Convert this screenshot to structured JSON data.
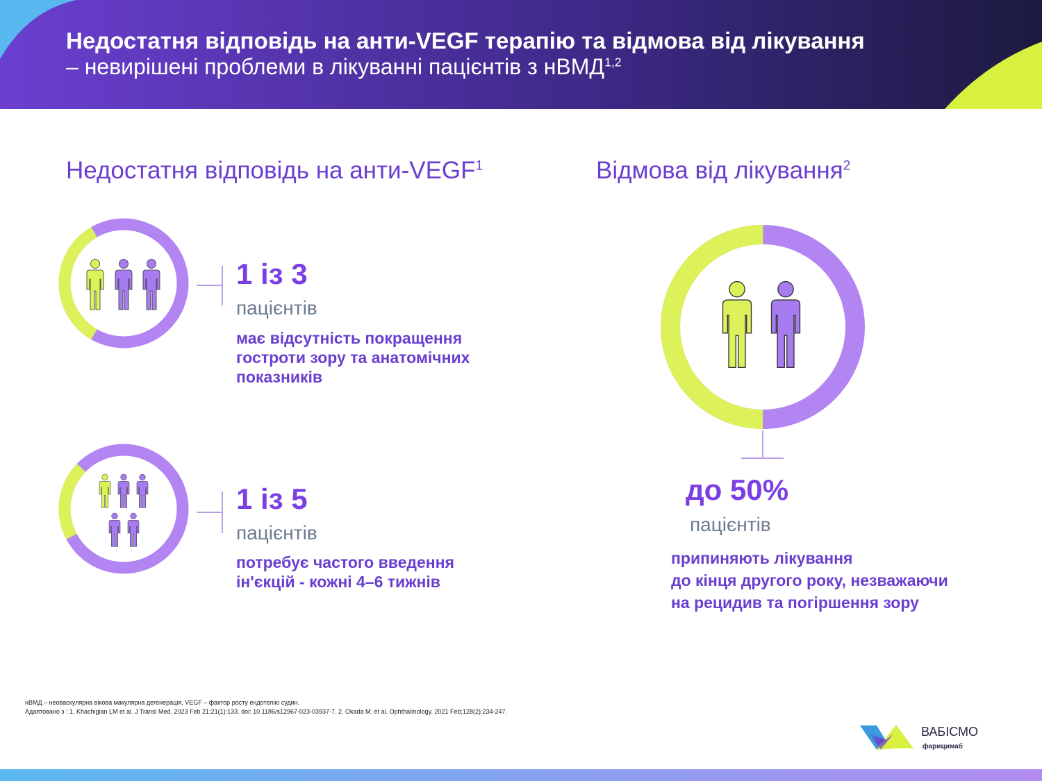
{
  "header": {
    "title": "Недостатня відповідь на анти-VEGF терапію та відмова від лікування",
    "subtitle": "– невирішені проблеми в лікуванні пацієнтів з нВМД",
    "subtitle_sup": "1,2"
  },
  "left": {
    "heading": "Недостатня відповідь на анти-VEGF",
    "heading_sup": "1",
    "stats": [
      {
        "value": "1 із 3",
        "unit": "пацієнтів",
        "description": [
          "має відсутність покращення",
          "гостроти зору та анатомічних",
          "показників"
        ]
      },
      {
        "value": "1 із 5",
        "unit": "пацієнтів",
        "description": [
          "потребує частого введення",
          "ін'єкцій - кожні 4–6 тижнів"
        ]
      }
    ]
  },
  "right": {
    "heading": "Відмова від лікування",
    "heading_sup": "2",
    "stat": {
      "value": "до 50%",
      "unit": "пацієнтів",
      "description": [
        "припиняють лікування",
        "до кінця другого року, незважаючи",
        "на рецидив та погіршення зору"
      ]
    }
  },
  "footnotes": [
    "нВМД – неоваскулярна вікова макулярна дегенерація, VEGF – фактор росту ендотелію судин.",
    "Адаптовано з : 1. Khachigian LM et al. J Transl Med. 2023 Feb 21;21(1):133. doi: 10.1186/s12967-023-03937-7. 2. Okada M. et al. Ophthalmology. 2021 Feb;128(2):234-247."
  ],
  "logo": {
    "name": "ВАБІСМО",
    "subtitle": "фарицимаб"
  }
}
